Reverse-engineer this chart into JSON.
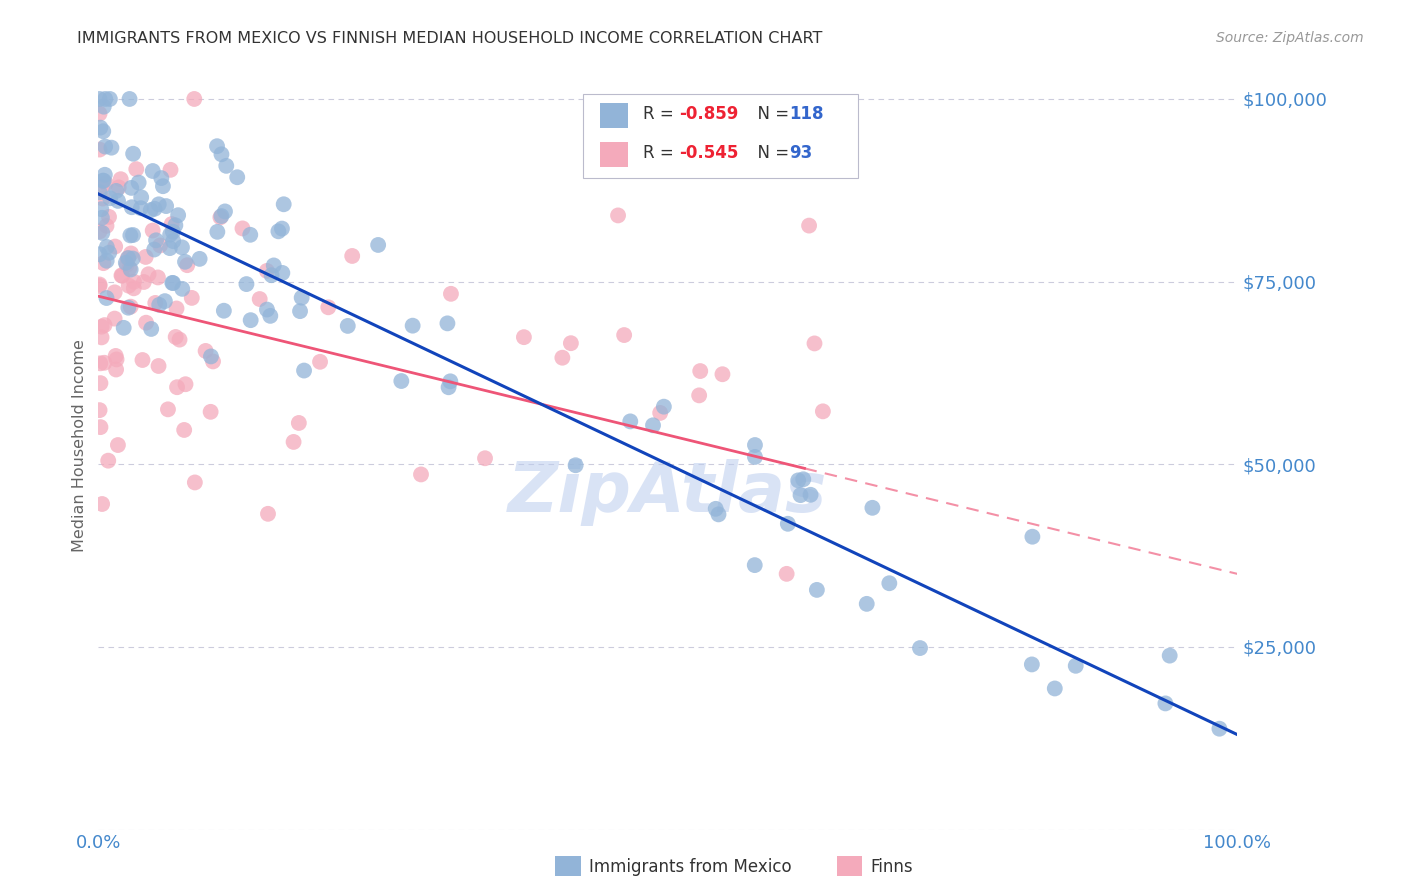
{
  "title": "IMMIGRANTS FROM MEXICO VS FINNISH MEDIAN HOUSEHOLD INCOME CORRELATION CHART",
  "source": "Source: ZipAtlas.com",
  "ylabel": "Median Household Income",
  "yticks": [
    0,
    25000,
    50000,
    75000,
    100000
  ],
  "ytick_labels": [
    "",
    "$25,000",
    "$50,000",
    "$75,000",
    "$100,000"
  ],
  "xmin": 0.0,
  "xmax": 1.0,
  "ymin": 0,
  "ymax": 105000,
  "blue_R": -0.859,
  "blue_N": 118,
  "pink_R": -0.545,
  "pink_N": 93,
  "blue_color": "#92B4D8",
  "pink_color": "#F4AABB",
  "blue_line_color": "#1144BB",
  "pink_line_color": "#EE5577",
  "title_color": "#333333",
  "axis_label_color": "#4488CC",
  "legend_R_color": "#EE2233",
  "legend_N_color": "#3366CC",
  "background_color": "#FFFFFF",
  "grid_color": "#CCCCDD",
  "watermark_color": "#BBCCEE",
  "blue_intercept": 87000,
  "blue_slope": -74000,
  "pink_intercept": 73000,
  "pink_slope": -38000,
  "pink_line_end": 0.62
}
